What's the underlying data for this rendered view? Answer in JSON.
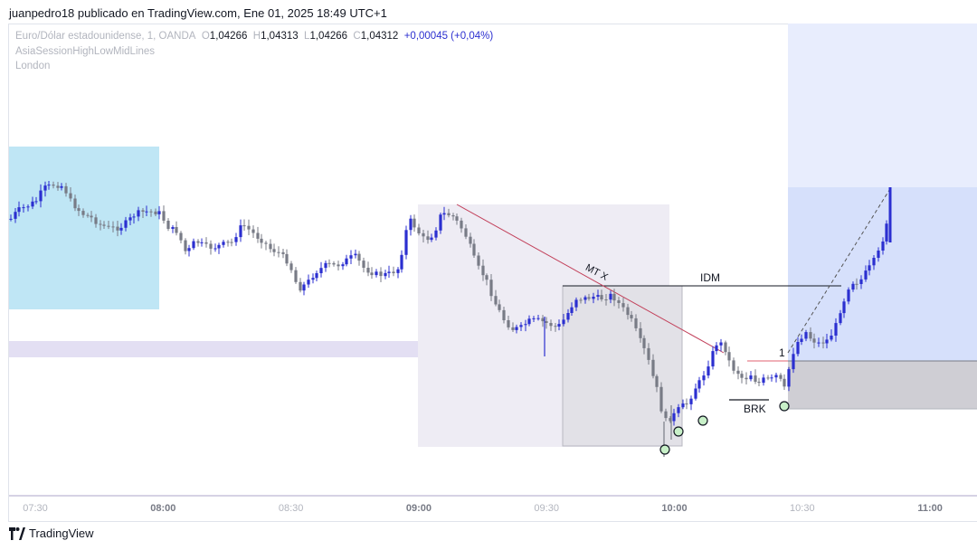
{
  "header": {
    "text": "juanpedro18 publicado en TradingView.com, Ene 01, 2025 18:49 UTC+1"
  },
  "legend": {
    "symbol": "Euro/Dólar estadounidense, 1, OANDA",
    "open_label": "O",
    "open": "1,04266",
    "high_label": "H",
    "high": "1,04313",
    "low_label": "L",
    "low": "1,04266",
    "close_label": "C",
    "close": "1,04312",
    "change": "+0,00045 (+0,04%)",
    "indicator": "AsiaSessionHighLowMidLines",
    "session": "London"
  },
  "footer": {
    "brand": "TradingView"
  },
  "colors": {
    "up": "#2b2fd0",
    "down": "#787b86",
    "asia_box": "#bfe6f5",
    "london_box": "#dbe3fb",
    "trend_line": "#c2405a"
  },
  "chart_data": {
    "type": "candlestick",
    "symbol": "EURUSD",
    "interval": "1 minute",
    "x_ticks": [
      "07:30",
      "08:00",
      "08:30",
      "09:00",
      "09:30",
      "10:00",
      "10:30",
      "11:00"
    ],
    "x_ticks_bold": [
      "08:00",
      "09:00",
      "10:00",
      "11:00"
    ],
    "last_ohlc": {
      "open": 1.04266,
      "high": 1.04313,
      "low": 1.04266,
      "close": 1.04312
    },
    "annotations": [
      "MT X",
      "IDM",
      "BRK",
      "1"
    ],
    "grid": false
  }
}
